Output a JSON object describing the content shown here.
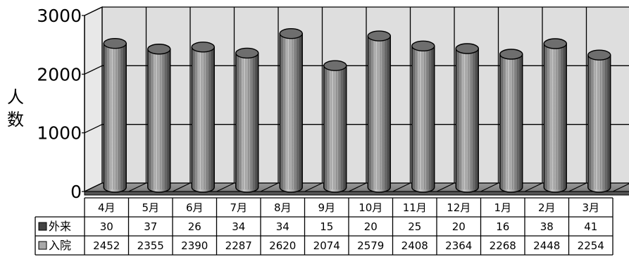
{
  "chart_data": {
    "type": "bar",
    "ylabel": "人数",
    "ylim": [
      0,
      3000
    ],
    "yticks": [
      "0",
      "1000",
      "2000",
      "3000"
    ],
    "categories": [
      "4月",
      "5月",
      "6月",
      "7月",
      "8月",
      "9月",
      "10月",
      "11月",
      "12月",
      "1月",
      "2月",
      "3月"
    ],
    "series": [
      {
        "name": "外来",
        "values": [
          30,
          37,
          26,
          34,
          34,
          15,
          20,
          25,
          20,
          16,
          38,
          41
        ],
        "color": "#444444"
      },
      {
        "name": "入院",
        "values": [
          2452,
          2355,
          2390,
          2287,
          2620,
          2074,
          2579,
          2408,
          2364,
          2268,
          2448,
          2254
        ],
        "color": "#a8a8a8"
      }
    ],
    "data_table": true,
    "grid": true,
    "three_d": true
  }
}
